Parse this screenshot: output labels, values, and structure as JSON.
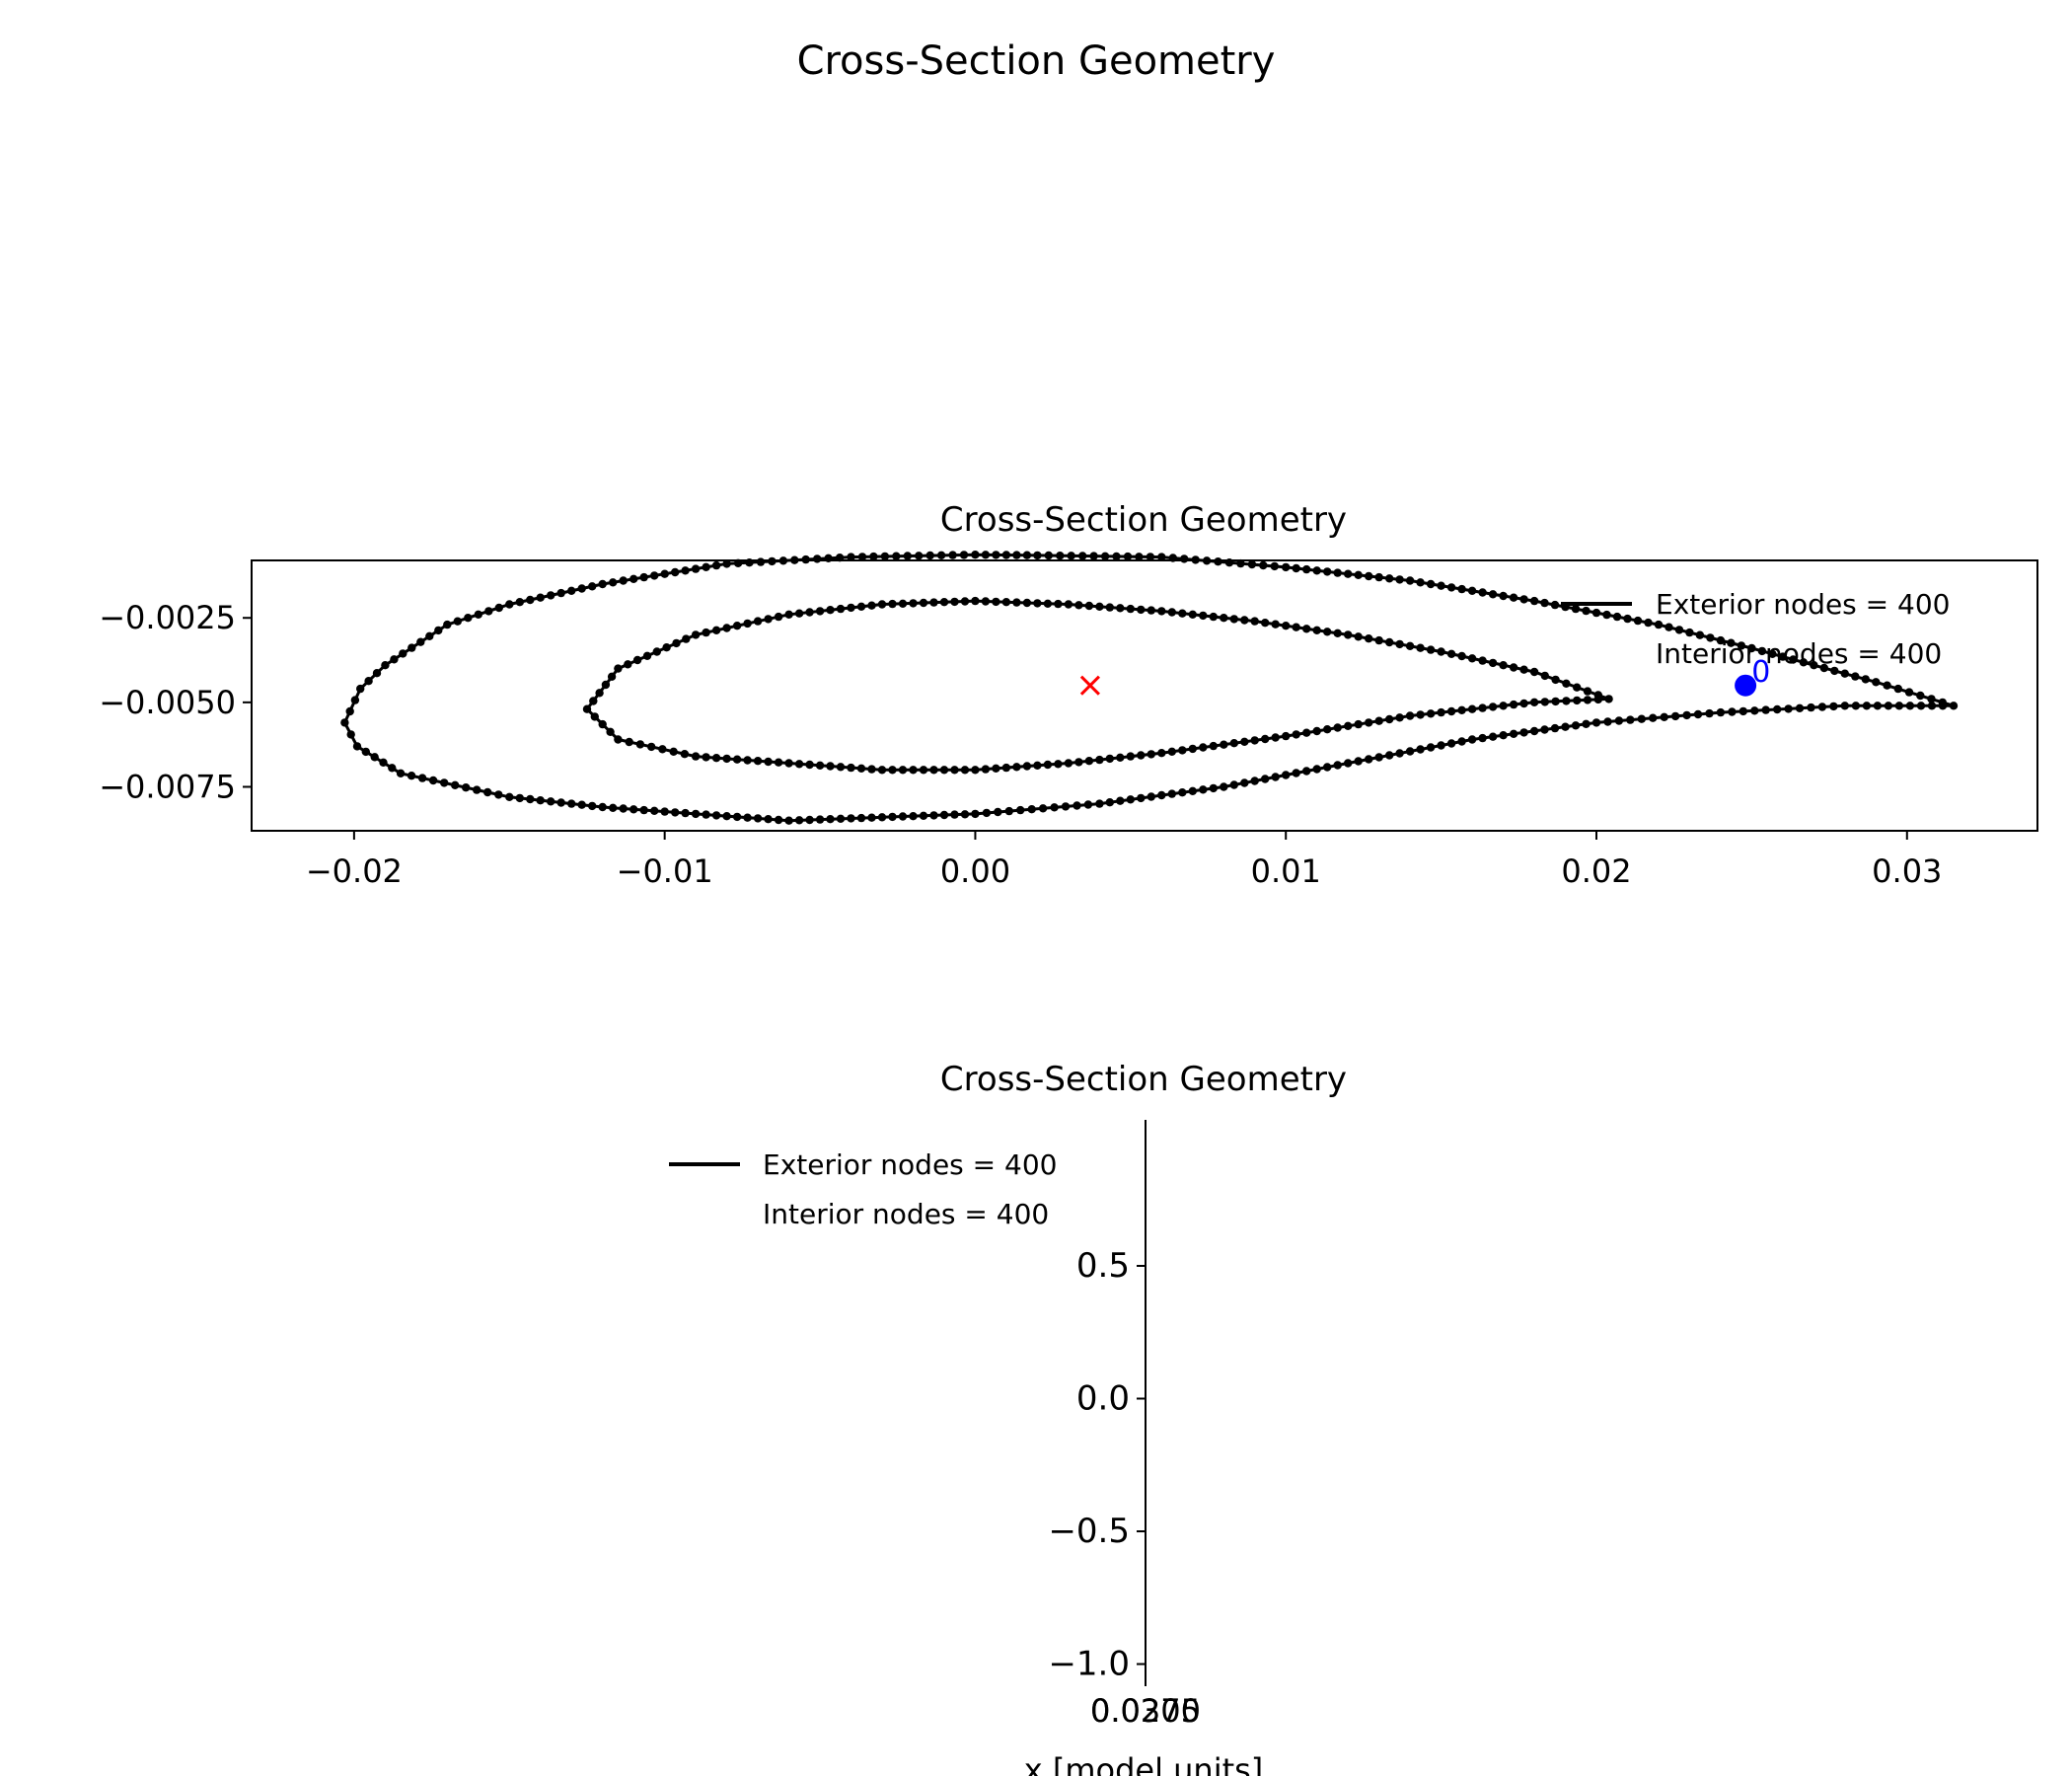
{
  "figure": {
    "suptitle": "Cross-Section Geometry"
  },
  "colors": {
    "exterior": "#000000",
    "interior": "#000000",
    "centroid": "#ff0000",
    "shear_center": "#0000ff"
  },
  "chart_data": [
    {
      "type": "scatter",
      "title": "Cross-Section Geometry",
      "xlabel": "",
      "ylabel": "",
      "xlim": [
        -0.0233,
        0.0342
      ],
      "ylim": [
        -0.0088,
        -0.0008
      ],
      "xticks": [
        -0.02,
        -0.01,
        0.0,
        0.01,
        0.02,
        0.03
      ],
      "xtick_labels": [
        "−0.02",
        "−0.01",
        "0.00",
        "0.01",
        "0.02",
        "0.03"
      ],
      "yticks": [
        -0.0025,
        -0.005,
        -0.0075
      ],
      "ytick_labels": [
        "−0.0025",
        "−0.0050",
        "−0.0075"
      ],
      "legend_position": "top-right",
      "legend": [
        "Exterior nodes = 400",
        "Interior nodes = 400"
      ],
      "series": [
        {
          "name": "Exterior nodes = 400",
          "marker": "dot",
          "points": [
            [
              0.0315,
              -0.0051
            ],
            [
              0.029,
              -0.0044
            ],
            [
              0.027,
              -0.0039
            ],
            [
              0.025,
              -0.0034
            ],
            [
              0.022,
              -0.0027
            ],
            [
              0.018,
              -0.002
            ],
            [
              0.014,
              -0.0014
            ],
            [
              0.01,
              -0.001
            ],
            [
              0.006,
              -0.0007
            ],
            [
              0.002,
              -0.00065
            ],
            [
              0.0,
              -0.00063
            ],
            [
              -0.004,
              -0.0007
            ],
            [
              -0.008,
              -0.0009
            ],
            [
              -0.012,
              -0.0015
            ],
            [
              -0.015,
              -0.0021
            ],
            [
              -0.017,
              -0.0027
            ],
            [
              -0.019,
              -0.0039
            ],
            [
              -0.0198,
              -0.0046
            ],
            [
              -0.0203,
              -0.0056
            ],
            [
              -0.0199,
              -0.0063
            ],
            [
              -0.0185,
              -0.0071
            ],
            [
              -0.015,
              -0.0078
            ],
            [
              -0.012,
              -0.0081
            ],
            [
              -0.009,
              -0.0083
            ],
            [
              -0.006,
              -0.0085
            ],
            [
              -0.003,
              -0.0084
            ],
            [
              0.0,
              -0.0083
            ],
            [
              0.004,
              -0.008
            ],
            [
              0.008,
              -0.0075
            ],
            [
              0.012,
              -0.0068
            ],
            [
              0.016,
              -0.0061
            ],
            [
              0.02,
              -0.0056
            ],
            [
              0.024,
              -0.0053
            ],
            [
              0.028,
              -0.0051
            ],
            [
              0.0315,
              -0.0051
            ]
          ]
        },
        {
          "name": "Interior nodes = 400",
          "marker": "dot",
          "points": [
            [
              0.0204,
              -0.0049
            ],
            [
              0.018,
              -0.0041
            ],
            [
              0.015,
              -0.0035
            ],
            [
              0.012,
              -0.003
            ],
            [
              0.009,
              -0.0026
            ],
            [
              0.006,
              -0.0023
            ],
            [
              0.003,
              -0.0021
            ],
            [
              0.0,
              -0.002
            ],
            [
              -0.003,
              -0.0021
            ],
            [
              -0.006,
              -0.0024
            ],
            [
              -0.009,
              -0.003
            ],
            [
              -0.0115,
              -0.004
            ],
            [
              -0.0125,
              -0.0052
            ],
            [
              -0.0115,
              -0.0061
            ],
            [
              -0.009,
              -0.0066
            ],
            [
              -0.006,
              -0.0068
            ],
            [
              -0.003,
              -0.007
            ],
            [
              0.0,
              -0.007
            ],
            [
              0.003,
              -0.0068
            ],
            [
              0.006,
              -0.0065
            ],
            [
              0.01,
              -0.006
            ],
            [
              0.014,
              -0.0054
            ],
            [
              0.018,
              -0.005
            ],
            [
              0.0204,
              -0.0049
            ]
          ]
        }
      ],
      "annotations": [
        {
          "name": "centroid",
          "marker": "x",
          "x": 0.0037,
          "y": -0.0045
        },
        {
          "name": "shear_center",
          "marker": "filled circle",
          "x": 0.0248,
          "y": -0.0045
        },
        {
          "name": "small blue label",
          "text": "0",
          "x": 0.0253,
          "y": -0.0041
        }
      ]
    },
    {
      "type": "scatter",
      "title": "Cross-Section Geometry",
      "xlabel": "x [model units]",
      "ylabel": "",
      "ylim": [
        -1.05,
        1.05
      ],
      "yticks": [
        0.5,
        0.0,
        -0.5,
        -1.0
      ],
      "ytick_labels": [
        "0.5",
        "0.0",
        "−0.5",
        "−1.0"
      ],
      "xtick_labels_overlapping": [
        "0.0275",
        "0.0300"
      ],
      "legend_position": "top-left",
      "legend": [
        "Exterior nodes = 400",
        "Interior nodes = 400"
      ],
      "series": []
    }
  ]
}
